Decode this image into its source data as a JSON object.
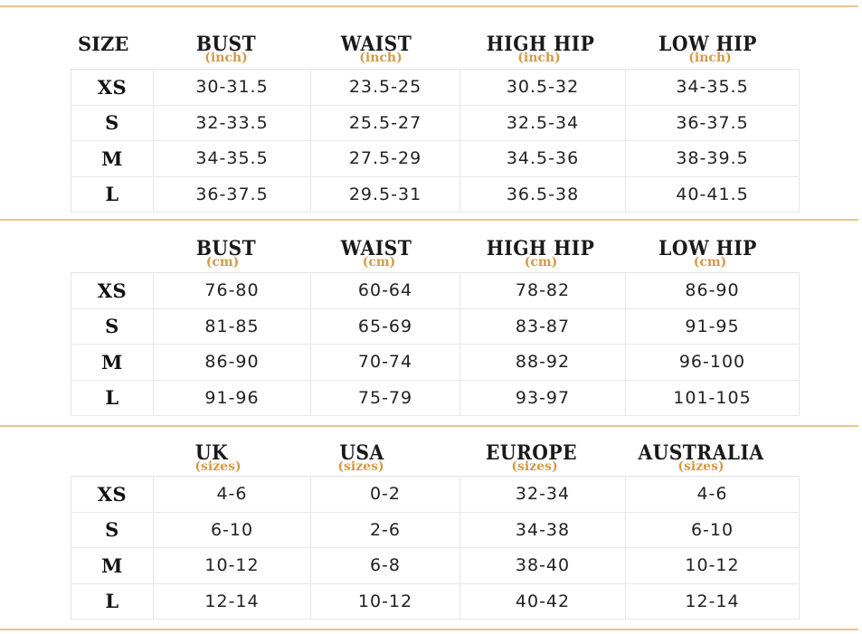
{
  "accent_color": "#d39a4a",
  "border_color": "#ecc493",
  "size_column_title": "SIZE",
  "sections": [
    {
      "headers": [
        {
          "label": "BUST",
          "unit": "(inch)"
        },
        {
          "label": "WAIST",
          "unit": "(inch)"
        },
        {
          "label": "HIGH HIP",
          "unit": "(inch)"
        },
        {
          "label": "LOW HIP",
          "unit": "(inch)"
        }
      ],
      "rows": [
        [
          "XS",
          "30-31.5",
          "23.5-25",
          "30.5-32",
          "34-35.5"
        ],
        [
          "S",
          "32-33.5",
          "25.5-27",
          "32.5-34",
          "36-37.5"
        ],
        [
          "M",
          "34-35.5",
          "27.5-29",
          "34.5-36",
          "38-39.5"
        ],
        [
          "L",
          "36-37.5",
          "29.5-31",
          "36.5-38",
          "40-41.5"
        ]
      ]
    },
    {
      "headers": [
        {
          "label": "BUST",
          "unit": "(cm)"
        },
        {
          "label": "WAIST",
          "unit": "(cm)"
        },
        {
          "label": "HIGH HIP",
          "unit": "(cm)"
        },
        {
          "label": "LOW HIP",
          "unit": "(cm)"
        }
      ],
      "rows": [
        [
          "XS",
          "76-80",
          "60-64",
          "78-82",
          "86-90"
        ],
        [
          "S",
          "81-85",
          "65-69",
          "83-87",
          "91-95"
        ],
        [
          "M",
          "86-90",
          "70-74",
          "88-92",
          "96-100"
        ],
        [
          "L",
          "91-96",
          "75-79",
          "93-97",
          "101-105"
        ]
      ]
    },
    {
      "headers": [
        {
          "label": "UK",
          "unit": "(sizes)"
        },
        {
          "label": "USA",
          "unit": "(sizes)"
        },
        {
          "label": "EUROPE",
          "unit": "(sizes)"
        },
        {
          "label": "AUSTRALIA",
          "unit": "(sizes)"
        }
      ],
      "rows": [
        [
          "XS",
          "4-6",
          "0-2",
          "32-34",
          "4-6"
        ],
        [
          "S",
          "6-10",
          "2-6",
          "34-38",
          "6-10"
        ],
        [
          "M",
          "10-12",
          "6-8",
          "38-40",
          "10-12"
        ],
        [
          "L",
          "12-14",
          "10-12",
          "40-42",
          "12-14"
        ]
      ]
    }
  ]
}
